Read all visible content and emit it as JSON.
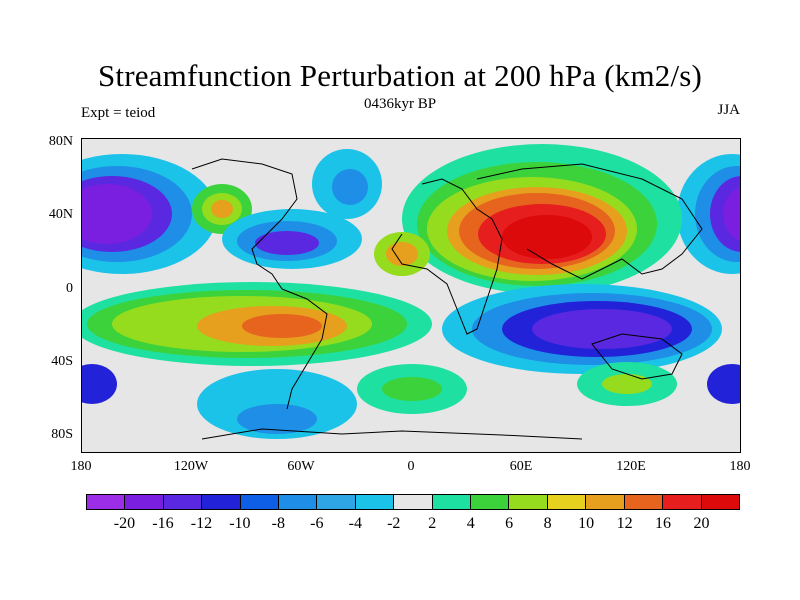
{
  "header": {
    "title": "Streamfunction Perturbation at 200 hPa (km2/s)",
    "left": "Expt = teiod",
    "center": "0436kyr BP",
    "right": "JJA"
  },
  "axes": {
    "lat_labels": [
      "80N",
      "40N",
      "0",
      "40S",
      "80S"
    ],
    "lon_labels": [
      "180",
      "120W",
      "60W",
      "0",
      "60E",
      "120E",
      "180"
    ]
  },
  "colorbar": {
    "labels": [
      "-20",
      "-16",
      "-12",
      "-10",
      "-8",
      "-6",
      "-4",
      "-2",
      "2",
      "4",
      "6",
      "8",
      "10",
      "12",
      "16",
      "20"
    ],
    "colors": [
      "#9b2ee6",
      "#7a1fe0",
      "#5a28e0",
      "#2222d8",
      "#0f5fe6",
      "#1e8ee6",
      "#2ea6e6",
      "#1cc3e8",
      "#e6e6e6",
      "#1ee0a0",
      "#3cd23c",
      "#96dc1e",
      "#e6d21e",
      "#e6a01e",
      "#e6641e",
      "#e61e1e",
      "#dc0a0a"
    ]
  }
}
